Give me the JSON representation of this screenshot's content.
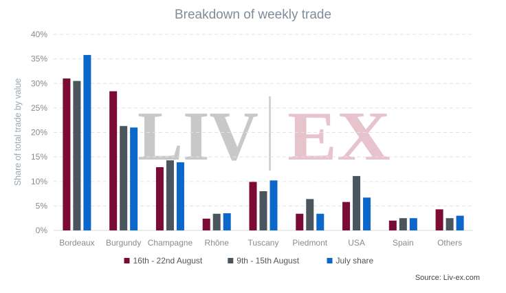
{
  "chart_data": {
    "type": "bar",
    "title": "Breakdown of weekly trade",
    "ylabel": "Share of total trade by value",
    "xlabel": "",
    "ylim": [
      0,
      40
    ],
    "yticks": [
      "0%",
      "5%",
      "10%",
      "15%",
      "20%",
      "25%",
      "30%",
      "35%",
      "40%"
    ],
    "categories": [
      "Bordeaux",
      "Burgundy",
      "Champagne",
      "Rhône",
      "Tuscany",
      "Piedmont",
      "USA",
      "Spain",
      "Others"
    ],
    "series": [
      {
        "name": "16th - 22nd August",
        "color": "#7b0a35",
        "values": [
          31.0,
          28.4,
          12.9,
          2.4,
          9.9,
          3.4,
          5.8,
          2.0,
          4.3
        ]
      },
      {
        "name": "9th - 15th August",
        "color": "#4a555e",
        "values": [
          30.5,
          21.3,
          14.3,
          3.4,
          8.0,
          6.4,
          11.1,
          2.5,
          2.5
        ]
      },
      {
        "name": "July share",
        "color": "#0b67c9",
        "values": [
          35.8,
          21.0,
          13.9,
          3.5,
          10.2,
          3.4,
          6.7,
          2.5,
          3.0
        ]
      }
    ],
    "grid": true,
    "legend_position": "bottom",
    "source": "Source: Liv-ex.com"
  },
  "watermark": {
    "left": "LIV",
    "right": "EX",
    "left_color": "#c8c8c8",
    "right_color": "#e7c3cd"
  }
}
